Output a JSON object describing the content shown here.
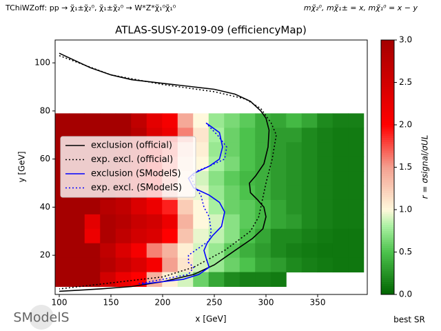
{
  "chart_data": {
    "type": "heatmap",
    "header_left": "TChiWZoff: pp → χ̃₁±χ̃₂⁰, χ̃₁±χ̃₂⁰ → W*Z*χ̃₁⁰χ̃₁⁰",
    "header_right": "mχ̃₂⁰, mχ̃₁± = x, mχ̃₁⁰ = x − y",
    "title": "ATLAS-SUSY-2019-09 (efficiencyMap)",
    "x_label": "x [GeV]",
    "y_label": "y [GeV]",
    "colorbar_label": "r = σsignal/σUL",
    "footer_right": "best SR",
    "logo": "SModelS",
    "xlim": [
      96,
      398
    ],
    "ylim": [
      3.7,
      109.5
    ],
    "xticks": [
      100,
      150,
      200,
      250,
      300,
      350
    ],
    "yticks": [
      20,
      40,
      60,
      80,
      100
    ],
    "clim": [
      0,
      3
    ],
    "cticks": [
      {
        "value": 0,
        "label": "0.0"
      },
      {
        "value": 0.5,
        "label": "0.5"
      },
      {
        "value": 1,
        "label": "1.0"
      },
      {
        "value": 1.5,
        "label": "1.5"
      },
      {
        "value": 2,
        "label": "2.0"
      },
      {
        "value": 2.5,
        "label": "2.5"
      },
      {
        "value": 3,
        "label": "3.0"
      }
    ],
    "colormap": [
      [
        0,
        "#006400"
      ],
      [
        0.5,
        "#4cc24c"
      ],
      [
        0.8,
        "#a8f0a0"
      ],
      [
        1,
        "#fff8dc"
      ],
      [
        1.5,
        "#f4a090"
      ],
      [
        2,
        "#ff0000"
      ],
      [
        3,
        "#a50000"
      ]
    ],
    "legend": "center left",
    "heat_x": [
      102,
      117,
      132,
      147,
      162,
      177,
      192,
      207,
      222,
      237,
      252,
      267,
      282,
      297,
      312,
      327,
      342,
      357,
      372,
      387
    ],
    "heat_y": [
      76,
      70,
      64,
      58,
      52,
      46,
      40,
      34,
      28,
      22,
      16,
      10
    ],
    "heat_values": [
      [
        3,
        3,
        3,
        3,
        3,
        2.7,
        2.3,
        2.1,
        1.45,
        1.0,
        0.75,
        0.65,
        0.55,
        0.4,
        0.35,
        0.45,
        0.35,
        0.2,
        0.15,
        0.15
      ],
      [
        3,
        3,
        3,
        3,
        3,
        2.8,
        2.4,
        2.2,
        1.6,
        1.1,
        0.8,
        0.6,
        0.5,
        0.4,
        0.3,
        0.3,
        0.2,
        0.15,
        0.12,
        0.12
      ],
      [
        3,
        3,
        3,
        3,
        2.9,
        2.7,
        2.3,
        1.8,
        1.3,
        1.05,
        0.75,
        0.6,
        0.5,
        0.4,
        0.3,
        0.25,
        0.2,
        0.15,
        0.12,
        0.12
      ],
      [
        3,
        3,
        3,
        3,
        2.9,
        2.6,
        2.2,
        1.7,
        1.2,
        1.0,
        0.8,
        0.65,
        0.5,
        0.4,
        0.3,
        0.25,
        0.2,
        0.15,
        0.12,
        0.12
      ],
      [
        3,
        3,
        3,
        3,
        2.9,
        2.5,
        2.1,
        1.6,
        1.1,
        0.9,
        0.7,
        0.55,
        0.45,
        0.4,
        0.3,
        0.25,
        0.2,
        0.15,
        0.12,
        0.12
      ],
      [
        3,
        3,
        3,
        3,
        2.8,
        2.5,
        2.0,
        1.5,
        1.1,
        0.95,
        0.75,
        0.6,
        0.5,
        0.4,
        0.3,
        0.25,
        0.2,
        0.15,
        0.12,
        0.12
      ],
      [
        3,
        3,
        3,
        2.8,
        2.7,
        2.4,
        2.2,
        1.9,
        1.25,
        1.0,
        0.8,
        0.6,
        0.55,
        0.45,
        0.35,
        0.25,
        0.2,
        0.15,
        0.12,
        0.12
      ],
      [
        3,
        3,
        2.3,
        2.9,
        2.8,
        2.6,
        2.5,
        2.2,
        1.4,
        1.0,
        0.9,
        0.7,
        0.55,
        0.45,
        0.35,
        0.3,
        0.2,
        0.15,
        0.12,
        0.12
      ],
      [
        3,
        3,
        2.2,
        2.9,
        2.7,
        2.5,
        2.4,
        2.0,
        1.3,
        0.95,
        0.85,
        0.7,
        0.5,
        0.35,
        0.2,
        0.2,
        0.15,
        0.12,
        0.1,
        0.1
      ],
      [
        3,
        3,
        3,
        2.7,
        2.4,
        2.1,
        1.6,
        1.4,
        1.05,
        0.9,
        0.75,
        0.55,
        0.4,
        0.3,
        0.2,
        0.15,
        0.12,
        0.1,
        0.1,
        0.1
      ],
      [
        3,
        3,
        3,
        2.8,
        2.6,
        2.4,
        2.1,
        1.5,
        1.1,
        0.9,
        0.75,
        0.6,
        0.5,
        0.35,
        0.3,
        0.2,
        0.15,
        0.12,
        0.1,
        0.1
      ],
      [
        3,
        3,
        3,
        2.5,
        2.2,
        2.0,
        1.4,
        1.05,
        0.9,
        0.6,
        0.35,
        0.2,
        0.15,
        0.15,
        0.12,
        null,
        null,
        null,
        null,
        null
      ]
    ],
    "series": [
      {
        "name": "exclusion (official)",
        "color": "#000000",
        "dash": "solid",
        "x": [
          100,
          130,
          150,
          170,
          190,
          210,
          230,
          250,
          270,
          285,
          295,
          300,
          303,
          302,
          298,
          290,
          284,
          285,
          292,
          298,
          300,
          297,
          287,
          270,
          250,
          230,
          200,
          170,
          140,
          100
        ],
        "y": [
          104,
          98,
          95,
          93,
          92,
          91,
          90,
          89,
          87,
          84,
          80,
          77,
          72,
          65,
          58,
          53,
          50,
          46,
          43,
          40,
          36,
          31,
          27,
          22,
          16,
          12,
          9,
          7,
          6,
          5
        ]
      },
      {
        "name": "exp. excl. (official)",
        "color": "#000000",
        "dash": "dotted",
        "x": [
          100,
          150,
          200,
          250,
          280,
          295,
          305,
          310,
          306,
          300,
          296,
          293,
          285,
          260,
          230,
          200,
          160,
          100
        ],
        "y": [
          103,
          95,
          91,
          88,
          85,
          81,
          75,
          70,
          60,
          50,
          42,
          36,
          30,
          22,
          15,
          11,
          9,
          6
        ]
      },
      {
        "name": "exclusion (SModelS)",
        "color": "#0000ff",
        "dash": "solid",
        "x": [
          242,
          255,
          258,
          255,
          245,
          235,
          230,
          225,
          230,
          245,
          255,
          260,
          257,
          248,
          243,
          240,
          242,
          245,
          235,
          220,
          200,
          180
        ],
        "y": [
          75,
          71,
          65,
          60,
          57,
          55,
          54,
          52,
          48,
          45,
          42,
          38,
          32,
          28,
          25,
          22,
          19,
          15,
          12,
          10,
          9,
          8
        ]
      },
      {
        "name": "exp. excl. (SModelS)",
        "color": "#0000ff",
        "dash": "dotted",
        "x": [
          244,
          253,
          262,
          260,
          245,
          233,
          228,
          232,
          237,
          240,
          245,
          247,
          245,
          235,
          225,
          225,
          230,
          225,
          200,
          175
        ],
        "y": [
          74,
          70,
          65,
          60,
          57,
          55,
          52,
          48,
          45,
          40,
          36,
          30,
          26,
          23,
          20,
          17,
          15,
          12,
          10,
          8
        ]
      }
    ]
  }
}
